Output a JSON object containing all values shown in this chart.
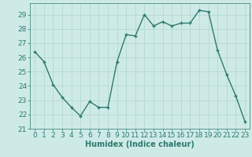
{
  "x": [
    0,
    1,
    2,
    3,
    4,
    5,
    6,
    7,
    8,
    9,
    10,
    11,
    12,
    13,
    14,
    15,
    16,
    17,
    18,
    19,
    20,
    21,
    22,
    23
  ],
  "y": [
    26.4,
    25.7,
    24.1,
    23.2,
    22.5,
    21.9,
    22.9,
    22.5,
    22.5,
    25.7,
    27.6,
    27.5,
    29.0,
    28.2,
    28.5,
    28.2,
    28.4,
    28.4,
    29.3,
    29.2,
    26.5,
    24.8,
    23.3,
    21.5
  ],
  "line_color": "#2d7a6e",
  "marker": "+",
  "marker_size": 3,
  "marker_linewidth": 1.0,
  "bg_color": "#ceeae7",
  "grid_color": "#b0d4d0",
  "xlabel": "Humidex (Indice chaleur)",
  "xlim": [
    -0.5,
    23.5
  ],
  "ylim": [
    21,
    29.8
  ],
  "yticks": [
    21,
    22,
    23,
    24,
    25,
    26,
    27,
    28,
    29
  ],
  "xticks": [
    0,
    1,
    2,
    3,
    4,
    5,
    6,
    7,
    8,
    9,
    10,
    11,
    12,
    13,
    14,
    15,
    16,
    17,
    18,
    19,
    20,
    21,
    22,
    23
  ],
  "tick_color": "#2d7a6e",
  "xlabel_color": "#2d7a6e",
  "xlabel_fontsize": 7,
  "tick_fontsize": 6.5,
  "linewidth": 1.0
}
